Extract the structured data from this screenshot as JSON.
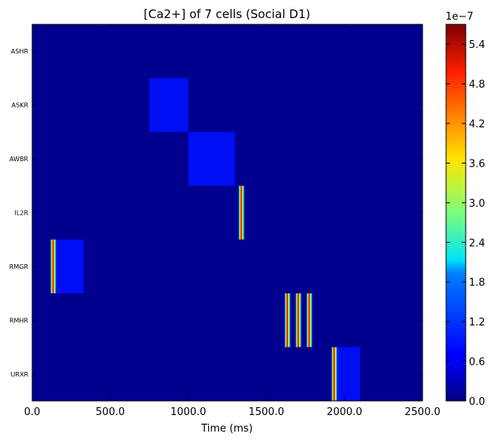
{
  "chart_data": {
    "type": "heatmap",
    "title": "[Ca2+] of 7 cells (Social D1)",
    "xlabel": "Time (ms)",
    "ylabel": "",
    "xlim": [
      0,
      2500
    ],
    "x_ticks": [
      "0.0",
      "500.0",
      "1000.0",
      "1500.0",
      "2000.0",
      "2500.0"
    ],
    "x_tick_values": [
      0,
      500,
      1000,
      1500,
      2000,
      2500
    ],
    "rows": [
      "ASHR",
      "ASKR",
      "AWBR",
      "IL2R",
      "RMGR",
      "RMHR",
      "URXR"
    ],
    "colormap": "jet",
    "background_color": "#00008f",
    "colorbar": {
      "min": 0.0,
      "max": 5.7e-07,
      "exponent_label": "1e−7",
      "ticks": [
        "0.0",
        "0.6",
        "1.2",
        "1.8",
        "2.4",
        "3.0",
        "3.6",
        "4.2",
        "4.8",
        "5.4"
      ],
      "tick_values": [
        0.0,
        0.6,
        1.2,
        1.8,
        2.4,
        3.0,
        3.6,
        4.2,
        4.8,
        5.4
      ]
    },
    "spikes": [
      {
        "cell": "IL2R",
        "time": 1340,
        "peak": 5.7e-07
      },
      {
        "cell": "RMGR",
        "time": 135,
        "peak": 5.7e-07
      },
      {
        "cell": "RMHR",
        "time": 1635,
        "peak": 5.7e-07
      },
      {
        "cell": "RMHR",
        "time": 1705,
        "peak": 5.7e-07
      },
      {
        "cell": "RMHR",
        "time": 1775,
        "peak": 5.7e-07
      },
      {
        "cell": "URXR",
        "time": 1935,
        "peak": 5.7e-07
      }
    ],
    "decay_regions": [
      {
        "cell": "RMGR",
        "start": 135,
        "end": 330,
        "level": 4e-09
      },
      {
        "cell": "URXR",
        "start": 1935,
        "end": 2100,
        "level": 5e-09
      },
      {
        "cell": "ASKR",
        "start": 750,
        "end": 1000,
        "level": 2e-09
      },
      {
        "cell": "AWBR",
        "start": 1000,
        "end": 1300,
        "level": 1.5e-09
      }
    ]
  }
}
